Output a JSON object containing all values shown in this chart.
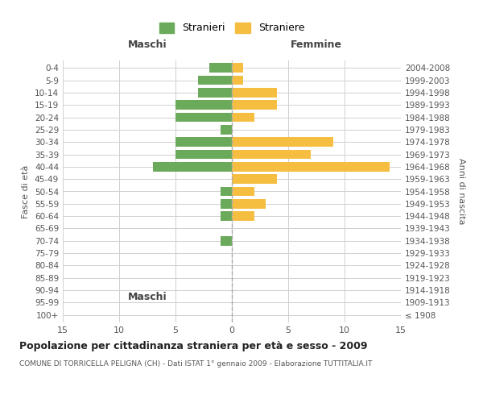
{
  "age_groups": [
    "100+",
    "95-99",
    "90-94",
    "85-89",
    "80-84",
    "75-79",
    "70-74",
    "65-69",
    "60-64",
    "55-59",
    "50-54",
    "45-49",
    "40-44",
    "35-39",
    "30-34",
    "25-29",
    "20-24",
    "15-19",
    "10-14",
    "5-9",
    "0-4"
  ],
  "birth_years": [
    "≤ 1908",
    "1909-1913",
    "1914-1918",
    "1919-1923",
    "1924-1928",
    "1929-1933",
    "1934-1938",
    "1939-1943",
    "1944-1948",
    "1949-1953",
    "1954-1958",
    "1959-1963",
    "1964-1968",
    "1969-1973",
    "1974-1978",
    "1979-1983",
    "1984-1988",
    "1989-1993",
    "1994-1998",
    "1999-2003",
    "2004-2008"
  ],
  "maschi": [
    0,
    0,
    0,
    0,
    0,
    0,
    1,
    0,
    1,
    1,
    1,
    0,
    7,
    5,
    5,
    1,
    5,
    5,
    3,
    3,
    2
  ],
  "femmine": [
    0,
    0,
    0,
    0,
    0,
    0,
    0,
    0,
    2,
    3,
    2,
    4,
    14,
    7,
    9,
    0,
    2,
    4,
    4,
    1,
    1
  ],
  "color_maschi": "#6aaa5a",
  "color_femmine": "#f5be41",
  "title": "Popolazione per cittadinanza straniera per età e sesso - 2009",
  "subtitle": "COMUNE DI TORRICELLA PELIGNA (CH) - Dati ISTAT 1° gennaio 2009 - Elaborazione TUTTITALIA.IT",
  "xlabel_left": "Maschi",
  "xlabel_right": "Femmine",
  "ylabel_left": "Fasce di età",
  "ylabel_right": "Anni di nascita",
  "legend_maschi": "Stranieri",
  "legend_femmine": "Straniere",
  "xlim": 15,
  "background_color": "#ffffff",
  "grid_color": "#d0d0d0"
}
